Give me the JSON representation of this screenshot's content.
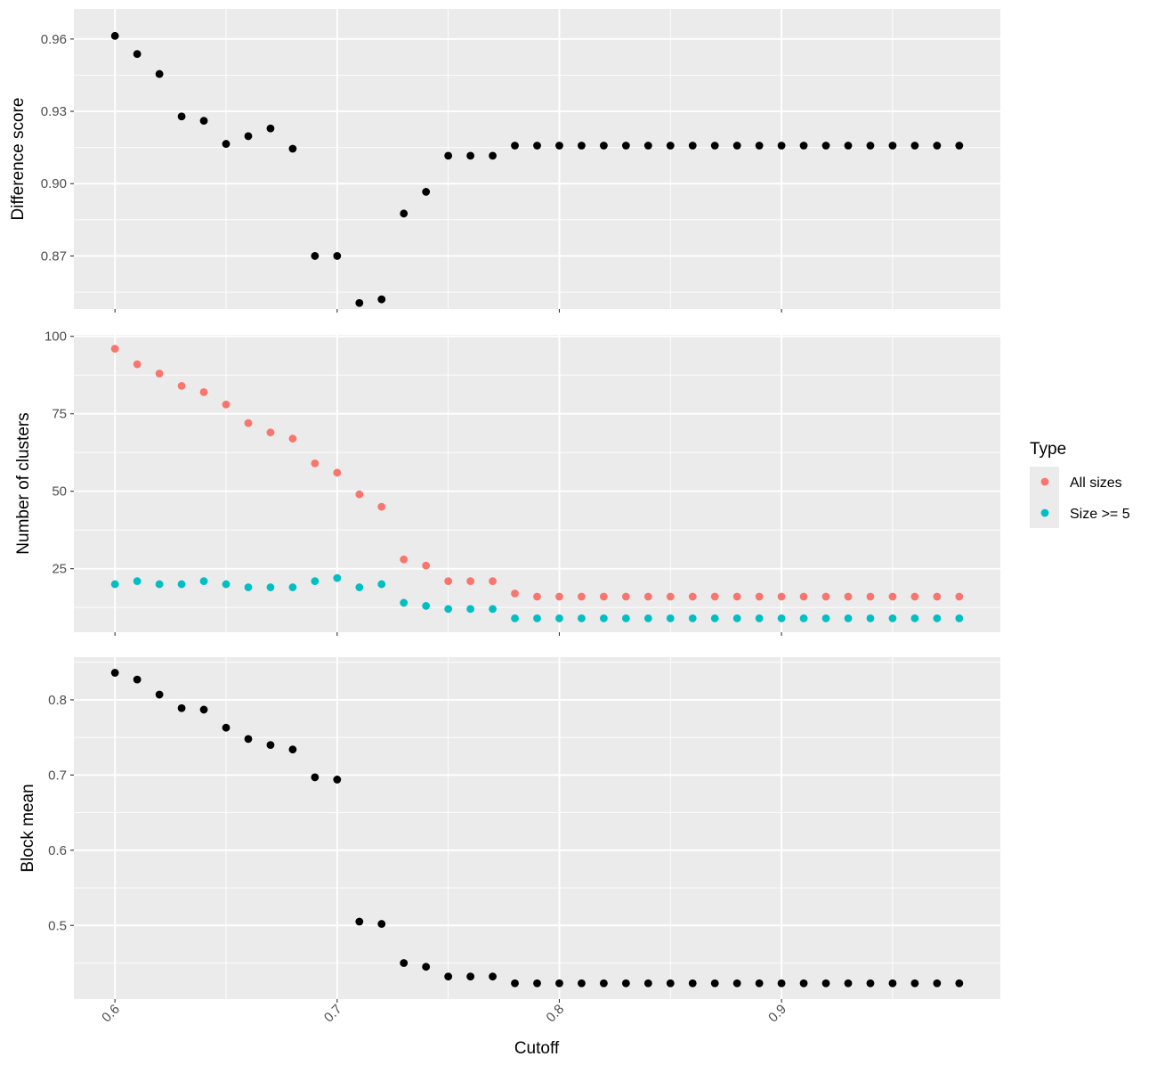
{
  "chart_data": {
    "type": "scatter",
    "xlabel": "Cutoff",
    "x": [
      0.6,
      0.61,
      0.62,
      0.63,
      0.64,
      0.65,
      0.66,
      0.67,
      0.68,
      0.69,
      0.7,
      0.71,
      0.72,
      0.73,
      0.74,
      0.75,
      0.76,
      0.77,
      0.78,
      0.79,
      0.8,
      0.81,
      0.82,
      0.83,
      0.84,
      0.85,
      0.86,
      0.87,
      0.88,
      0.89,
      0.9,
      0.91,
      0.92,
      0.93,
      0.94,
      0.95,
      0.96,
      0.97,
      0.98
    ],
    "xlim": [
      0.5815,
      0.9985
    ],
    "xticks": [
      0.6,
      0.7,
      0.8,
      0.9
    ],
    "xtick_labels": [
      "0.6",
      "0.7",
      "0.8",
      "0.9"
    ],
    "grid": true,
    "panels": [
      {
        "ylabel": "Difference score",
        "ylim": [
          0.848,
          0.9725
        ],
        "yticks": [
          0.87,
          0.9,
          0.93,
          0.96
        ],
        "ytick_labels": [
          "0.87",
          "0.90",
          "0.93",
          "0.96"
        ],
        "series": [
          {
            "color": "#000000",
            "values": [
              0.9613,
              0.9538,
              0.9455,
              0.9279,
              0.9261,
              0.9165,
              0.9197,
              0.9229,
              0.9145,
              0.87,
              0.87,
              0.8505,
              0.852,
              0.8876,
              0.8966,
              0.9116,
              0.9116,
              0.9116,
              0.9158,
              0.9158,
              0.9158,
              0.9158,
              0.9158,
              0.9158,
              0.9158,
              0.9158,
              0.9158,
              0.9158,
              0.9158,
              0.9158,
              0.9158,
              0.9158,
              0.9158,
              0.9158,
              0.9158,
              0.9158,
              0.9158,
              0.9158,
              0.9158
            ]
          }
        ]
      },
      {
        "ylabel": "Number of clusters",
        "ylim": [
          4.5,
          100.5
        ],
        "yticks": [
          25,
          50,
          75,
          100
        ],
        "ytick_labels": [
          "25",
          "50",
          "75",
          "100"
        ],
        "series": [
          {
            "name": "All sizes",
            "color": "#F8766D",
            "values": [
              96,
              91,
              88,
              84,
              82,
              78,
              72,
              69,
              67,
              59,
              56,
              49,
              45,
              28,
              26,
              21,
              21,
              21,
              17,
              16,
              16,
              16,
              16,
              16,
              16,
              16,
              16,
              16,
              16,
              16,
              16,
              16,
              16,
              16,
              16,
              16,
              16,
              16,
              16
            ]
          },
          {
            "name": "Size >= 5",
            "color": "#00BFC4",
            "values": [
              20,
              21,
              20,
              20,
              21,
              20,
              19,
              19,
              19,
              21,
              22,
              19,
              20,
              14,
              13,
              12,
              12,
              12,
              9,
              9,
              9,
              9,
              9,
              9,
              9,
              9,
              9,
              9,
              9,
              9,
              9,
              9,
              9,
              9,
              9,
              9,
              9,
              9,
              9
            ]
          }
        ]
      },
      {
        "ylabel": "Block mean",
        "ylim": [
          0.402,
          0.8568
        ],
        "yticks": [
          0.5,
          0.6,
          0.7,
          0.8
        ],
        "ytick_labels": [
          "0.5",
          "0.6",
          "0.7",
          "0.8"
        ],
        "series": [
          {
            "color": "#000000",
            "values": [
              0.836,
              0.827,
              0.807,
              0.789,
              0.787,
              0.763,
              0.748,
              0.74,
              0.734,
              0.697,
              0.694,
              0.505,
              0.502,
              0.45,
              0.445,
              0.432,
              0.432,
              0.432,
              0.423,
              0.423,
              0.423,
              0.423,
              0.423,
              0.423,
              0.423,
              0.423,
              0.423,
              0.423,
              0.423,
              0.423,
              0.423,
              0.423,
              0.423,
              0.423,
              0.423,
              0.423,
              0.423,
              0.423,
              0.423
            ]
          }
        ]
      }
    ],
    "legend": {
      "title": "Type",
      "placement": "right",
      "entries": [
        {
          "label": "All sizes",
          "color": "#F8766D"
        },
        {
          "label": "Size >= 5",
          "color": "#00BFC4"
        }
      ]
    }
  }
}
